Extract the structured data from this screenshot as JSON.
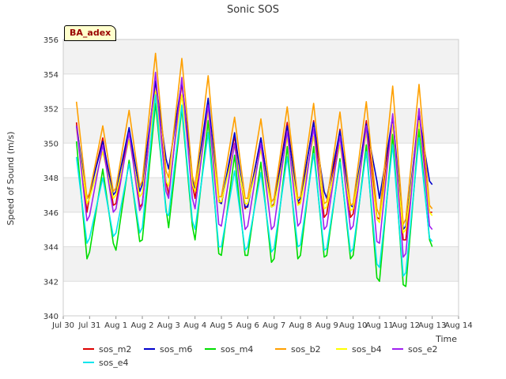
{
  "chart_data": {
    "type": "line",
    "title": "Sonic SOS",
    "xlabel": "Time",
    "ylabel": "Speed of Sound (m/s)",
    "badge": "BA_adex",
    "x_tick_labels": [
      "Jul 30",
      "Jul 31",
      "Aug 1",
      "Aug 2",
      "Aug 3",
      "Aug 4",
      "Aug 5",
      "Aug 6",
      "Aug 7",
      "Aug 8",
      "Aug 9",
      "Aug 10",
      "Aug 11",
      "Aug 12",
      "Aug 13",
      "Aug 14"
    ],
    "y_ticks": [
      340,
      342,
      344,
      346,
      348,
      350,
      352,
      354,
      356
    ],
    "ylim": [
      340,
      356
    ],
    "xlim_days": [
      0,
      15
    ],
    "grid": true,
    "legend_position": "bottom",
    "x_days": [
      0.5,
      0.9,
      1.0,
      1.5,
      1.9,
      2.0,
      2.5,
      2.9,
      3.0,
      3.5,
      3.9,
      4.0,
      4.5,
      4.9,
      5.0,
      5.5,
      5.9,
      6.0,
      6.5,
      6.9,
      7.0,
      7.5,
      7.9,
      8.0,
      8.5,
      8.9,
      9.0,
      9.5,
      9.9,
      10.0,
      10.5,
      10.9,
      11.0,
      11.5,
      11.9,
      12.0,
      12.5,
      12.9,
      13.0,
      13.5,
      13.9,
      14.0
    ],
    "series": [
      {
        "name": "sos_m2",
        "color": "#dd0000",
        "values": [
          351.2,
          346.0,
          347.0,
          350.3,
          346.4,
          346.5,
          350.8,
          346.3,
          346.5,
          353.6,
          347.8,
          347.0,
          353.5,
          347.6,
          346.8,
          352.4,
          346.7,
          346.5,
          350.4,
          346.2,
          346.4,
          350.3,
          346.3,
          346.5,
          351.2,
          346.5,
          346.6,
          351.3,
          345.7,
          345.9,
          350.8,
          345.7,
          345.9,
          351.3,
          345.7,
          345.6,
          351.6,
          344.4,
          344.4,
          352.0,
          346.0,
          346.0
        ]
      },
      {
        "name": "sos_m6",
        "color": "#0000cc",
        "values": [
          351.0,
          346.8,
          347.1,
          350.1,
          347.0,
          347.2,
          350.9,
          347.2,
          347.6,
          353.6,
          349.1,
          348.5,
          353.6,
          348.0,
          347.3,
          352.6,
          346.6,
          346.5,
          350.6,
          346.3,
          346.3,
          350.3,
          346.3,
          346.4,
          351.0,
          346.6,
          346.8,
          351.2,
          347.2,
          346.8,
          350.7,
          346.4,
          346.3,
          351.1,
          347.8,
          346.8,
          351.5,
          345.0,
          345.2,
          351.6,
          347.8,
          347.6
        ]
      },
      {
        "name": "sos_m4",
        "color": "#00dd00",
        "values": [
          350.1,
          343.3,
          343.7,
          348.5,
          344.2,
          343.8,
          349.0,
          344.3,
          344.4,
          352.3,
          346.2,
          345.1,
          352.0,
          345.2,
          344.4,
          351.3,
          343.6,
          343.5,
          349.3,
          343.5,
          343.5,
          348.9,
          343.1,
          343.3,
          349.8,
          343.3,
          343.5,
          349.8,
          343.4,
          343.5,
          349.1,
          343.3,
          343.5,
          349.9,
          342.2,
          342.0,
          350.5,
          341.8,
          341.7,
          350.8,
          344.4,
          344.0
        ]
      },
      {
        "name": "sos_b2",
        "color": "#ffa000",
        "values": [
          352.4,
          346.8,
          347.1,
          351.0,
          347.2,
          347.4,
          351.9,
          347.5,
          347.8,
          355.2,
          348.4,
          348.0,
          354.9,
          348.1,
          347.5,
          353.9,
          346.9,
          346.9,
          351.5,
          346.8,
          346.8,
          351.4,
          346.6,
          346.8,
          352.1,
          346.8,
          346.9,
          352.3,
          346.5,
          346.6,
          351.8,
          346.4,
          346.5,
          352.4,
          346.2,
          345.8,
          353.3,
          345.3,
          345.6,
          353.4,
          346.4,
          346.2
        ]
      },
      {
        "name": "sos_b4",
        "color": "#ffff00",
        "values": [
          350.8,
          346.5,
          346.8,
          349.5,
          346.8,
          347.0,
          350.2,
          346.9,
          347.1,
          353.0,
          347.8,
          347.5,
          352.8,
          347.6,
          347.2,
          351.8,
          346.6,
          346.6,
          349.8,
          346.5,
          346.5,
          349.6,
          346.3,
          346.4,
          350.3,
          346.4,
          346.5,
          350.4,
          346.2,
          346.3,
          349.9,
          346.1,
          346.2,
          350.6,
          345.6,
          345.4,
          351.1,
          344.8,
          345.0,
          351.3,
          346.0,
          345.8
        ]
      },
      {
        "name": "sos_e2",
        "color": "#a020f0",
        "values": [
          351.0,
          345.5,
          345.8,
          349.9,
          346.0,
          346.2,
          350.6,
          346.1,
          346.4,
          354.1,
          347.2,
          346.8,
          353.8,
          346.8,
          346.2,
          352.2,
          345.3,
          345.2,
          350.0,
          345.0,
          345.2,
          350.0,
          345.0,
          345.2,
          350.7,
          345.2,
          345.4,
          350.9,
          345.0,
          345.2,
          350.4,
          345.0,
          345.2,
          351.0,
          344.3,
          344.2,
          351.7,
          343.4,
          343.6,
          352.0,
          345.2,
          345.0
        ]
      },
      {
        "name": "sos_e4",
        "color": "#00e5ee",
        "values": [
          349.2,
          344.2,
          344.5,
          348.0,
          344.6,
          344.8,
          348.8,
          344.8,
          345.1,
          352.8,
          346.0,
          345.8,
          352.2,
          345.5,
          345.0,
          350.6,
          344.0,
          344.0,
          348.4,
          343.8,
          344.0,
          348.3,
          343.7,
          343.9,
          349.2,
          344.0,
          344.1,
          349.4,
          343.8,
          343.9,
          348.9,
          343.7,
          343.9,
          349.5,
          343.0,
          342.8,
          349.9,
          342.3,
          342.5,
          350.3,
          344.5,
          344.3
        ]
      }
    ]
  }
}
